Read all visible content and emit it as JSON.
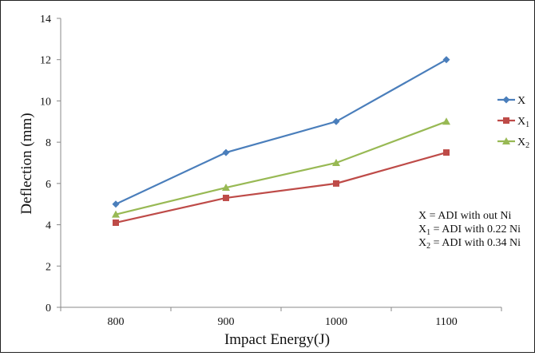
{
  "chart_data": {
    "type": "line",
    "categories": [
      "800",
      "900",
      "1000",
      "1100"
    ],
    "xlabel": "Impact Energy(J)",
    "ylabel": "Deflection (mm)",
    "ylim": [
      0,
      14
    ],
    "yticks": [
      "0",
      "2",
      "4",
      "6",
      "8",
      "10",
      "12",
      "14"
    ],
    "grid": false,
    "legend_position": "right",
    "series": [
      {
        "name": "X",
        "name_sub": "",
        "color": "#4a7ebb",
        "marker": "diamond",
        "values": [
          5,
          7.5,
          9,
          12
        ]
      },
      {
        "name": "X",
        "name_sub": "1",
        "color": "#be4b48",
        "marker": "square",
        "values": [
          4.1,
          5.3,
          6,
          7.5
        ]
      },
      {
        "name": "X",
        "name_sub": "2",
        "color": "#98b954",
        "marker": "triangle",
        "values": [
          4.5,
          5.8,
          7,
          9
        ]
      }
    ],
    "annotations": [
      {
        "lead": "X",
        "sub": "",
        "text": " = ADI with out Ni"
      },
      {
        "lead": "X",
        "sub": "1",
        "text": " = ADI with 0.22 Ni"
      },
      {
        "lead": "X",
        "sub": "2",
        "text": " = ADI with 0.34 Ni"
      }
    ]
  }
}
